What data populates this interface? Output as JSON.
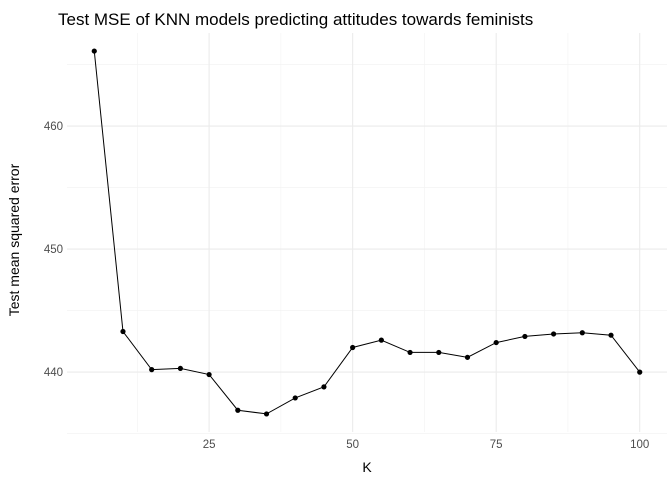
{
  "chart_data": {
    "type": "line",
    "title": "Test MSE of KNN models predicting attitudes towards feminists",
    "xlabel": "K",
    "ylabel": "Test mean squared error",
    "x": [
      5,
      10,
      15,
      20,
      25,
      30,
      35,
      40,
      45,
      50,
      55,
      60,
      65,
      70,
      75,
      80,
      85,
      90,
      95,
      100
    ],
    "series": [
      {
        "values": [
          466.1,
          443.3,
          440.2,
          440.3,
          439.8,
          436.9,
          436.6,
          437.9,
          438.8,
          442.0,
          442.6,
          441.6,
          441.6,
          441.2,
          442.4,
          442.9,
          443.1,
          443.2,
          443.0,
          440.0
        ]
      }
    ],
    "xlim": [
      0.25,
      104.75
    ],
    "ylim": [
      435.13,
      467.57
    ],
    "x_ticks": [
      25,
      50,
      75,
      100
    ],
    "y_ticks": [
      440,
      450,
      460
    ],
    "x_tick_labels": [
      "25",
      "50",
      "75",
      "100"
    ],
    "y_tick_labels": [
      "440",
      "450",
      "460"
    ],
    "x_minor_ticks": [
      12.5,
      37.5,
      62.5,
      87.5
    ],
    "y_minor_ticks": [
      435,
      445,
      455,
      465
    ],
    "grid": true,
    "legend": "none",
    "colors": {
      "line": "#000000",
      "points": "#000000",
      "grid_major": "#ebebeb",
      "grid_minor": "#f2f2f2",
      "background": "#ffffff",
      "tick_text": "#4d4d4d"
    }
  }
}
